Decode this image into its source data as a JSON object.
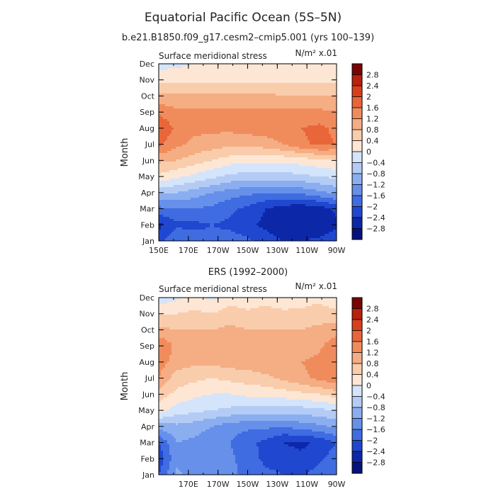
{
  "figure": {
    "title": "Equatorial Pacific Ocean (5S–5N)",
    "subtitle": "b.e21.B1850.f09_g17.cesm2–cmip5.001 (yrs 100–139)"
  },
  "colorbar": {
    "levels": [
      "2.8",
      "2.4",
      "2",
      "1.6",
      "1.2",
      "0.8",
      "0.4",
      "0",
      "−0.4",
      "−0.8",
      "−1.2",
      "−1.6",
      "−2",
      "−2.4",
      "−2.8"
    ],
    "colors": [
      "#7a0403",
      "#b8210b",
      "#d8401c",
      "#e8663a",
      "#f08c5c",
      "#f5ad84",
      "#f9ccab",
      "#fde6d4",
      "#d4e4fa",
      "#b4ccf5",
      "#8aaef0",
      "#6690ea",
      "#3f6ce0",
      "#1f47cf",
      "#0c27a8",
      "#06137a"
    ]
  },
  "chart_data": [
    {
      "type": "contour",
      "panel_label": "",
      "left_string": "Surface meridional stress",
      "right_string": "N/m² x.01",
      "xlabel": "",
      "ylabel": "Month",
      "xlim": [
        150,
        270
      ],
      "x_ticks": [
        "150E",
        "170E",
        "170W",
        "150W",
        "130W",
        "110W",
        "90W"
      ],
      "y_ticks": [
        "Jan",
        "Feb",
        "Mar",
        "Apr",
        "May",
        "Jun",
        "Jul",
        "Aug",
        "Sep",
        "Oct",
        "Nov",
        "Dec"
      ],
      "lons": [
        150,
        162,
        174,
        186,
        198,
        210,
        222,
        234,
        246,
        258,
        270
      ],
      "values": [
        [
          -2.2,
          -1.6,
          -1.8,
          -1.9,
          -1.8,
          -1.9,
          -2.2,
          -2.4,
          -2.4,
          -2.3,
          -2.1
        ],
        [
          -2.5,
          -2.1,
          -2.1,
          -2.0,
          -2.1,
          -2.3,
          -2.5,
          -2.7,
          -2.8,
          -2.8,
          -2.5
        ],
        [
          -1.7,
          -1.6,
          -1.6,
          -1.7,
          -1.9,
          -2.1,
          -2.4,
          -2.6,
          -2.7,
          -2.6,
          -2.3
        ],
        [
          -0.7,
          -0.8,
          -1.0,
          -1.2,
          -1.4,
          -1.5,
          -1.6,
          -1.6,
          -1.5,
          -1.3,
          -1.1
        ],
        [
          0.3,
          0.1,
          -0.1,
          -0.3,
          -0.5,
          -0.6,
          -0.6,
          -0.6,
          -0.5,
          -0.4,
          -0.3
        ],
        [
          0.9,
          0.8,
          0.6,
          0.4,
          0.2,
          0.1,
          0.1,
          0.1,
          0.2,
          0.3,
          0.4
        ],
        [
          1.7,
          1.3,
          1.1,
          1.0,
          0.9,
          0.9,
          1.0,
          1.2,
          1.5,
          1.7,
          1.6
        ],
        [
          2.0,
          1.5,
          1.3,
          1.3,
          1.3,
          1.4,
          1.4,
          1.5,
          1.6,
          1.7,
          1.5
        ],
        [
          1.5,
          1.3,
          1.3,
          1.3,
          1.3,
          1.3,
          1.3,
          1.3,
          1.3,
          1.3,
          1.2
        ],
        [
          0.9,
          0.9,
          0.9,
          0.9,
          0.9,
          0.9,
          0.9,
          0.8,
          0.8,
          0.8,
          0.8
        ],
        [
          0.3,
          0.3,
          0.3,
          0.3,
          0.3,
          0.3,
          0.3,
          0.3,
          0.3,
          0.3,
          0.3
        ],
        [
          -0.2,
          -0.1,
          0.0,
          0.0,
          0.0,
          0.1,
          0.1,
          0.1,
          0.1,
          0.1,
          0.0
        ]
      ]
    },
    {
      "type": "contour",
      "panel_label": "ERS (1992–2000)",
      "left_string": "Surface meridional stress",
      "right_string": "N/m² x.01",
      "xlabel": "",
      "ylabel": "Month",
      "xlim": [
        150,
        270
      ],
      "x_ticks": [
        "",
        "170E",
        "170W",
        "150W",
        "130W",
        "110W",
        "90W"
      ],
      "y_ticks": [
        "Jan",
        "Feb",
        "Mar",
        "Apr",
        "May",
        "Jun",
        "Jul",
        "Aug",
        "Sep",
        "Oct",
        "Nov",
        "Dec"
      ],
      "lons": [
        150,
        162,
        174,
        186,
        198,
        210,
        222,
        234,
        246,
        258,
        270
      ],
      "values": [
        [
          -2.0,
          -1.1,
          -1.4,
          -1.6,
          -1.5,
          -1.7,
          -1.9,
          -2.0,
          -2.1,
          -1.8,
          -1.6
        ],
        [
          -2.3,
          -1.3,
          -1.6,
          -1.6,
          -1.5,
          -1.8,
          -2.1,
          -2.2,
          -2.3,
          -2.1,
          -1.8
        ],
        [
          -2.0,
          -1.2,
          -1.3,
          -1.5,
          -1.6,
          -1.9,
          -2.1,
          -2.4,
          -2.5,
          -2.3,
          -2.0
        ],
        [
          -1.0,
          -0.9,
          -1.0,
          -1.2,
          -1.4,
          -1.5,
          -1.5,
          -1.6,
          -1.4,
          -1.3,
          -1.1
        ],
        [
          0.2,
          -0.2,
          -0.3,
          -0.4,
          -0.5,
          -0.6,
          -0.6,
          -0.6,
          -0.6,
          -0.5,
          -0.4
        ],
        [
          0.6,
          0.3,
          0.1,
          0.0,
          0.0,
          0.1,
          0.1,
          0.2,
          0.3,
          0.4,
          0.6
        ],
        [
          1.2,
          0.6,
          0.5,
          0.4,
          0.5,
          0.6,
          0.7,
          0.9,
          1.1,
          1.3,
          1.5
        ],
        [
          1.4,
          1.0,
          0.9,
          0.9,
          1.0,
          1.0,
          1.1,
          1.1,
          1.2,
          1.3,
          1.6
        ],
        [
          1.6,
          1.1,
          1.0,
          1.0,
          1.0,
          1.0,
          1.0,
          1.0,
          1.0,
          1.1,
          1.5
        ],
        [
          0.9,
          0.8,
          0.8,
          0.8,
          0.9,
          0.8,
          0.8,
          0.8,
          0.8,
          0.9,
          1.0
        ],
        [
          0.4,
          0.4,
          0.5,
          0.4,
          0.6,
          0.5,
          0.6,
          0.5,
          0.5,
          0.6,
          0.5
        ],
        [
          -0.3,
          -0.1,
          0.1,
          -0.1,
          0.2,
          0.1,
          0.2,
          0.1,
          0.2,
          0.3,
          0.1
        ]
      ]
    }
  ]
}
